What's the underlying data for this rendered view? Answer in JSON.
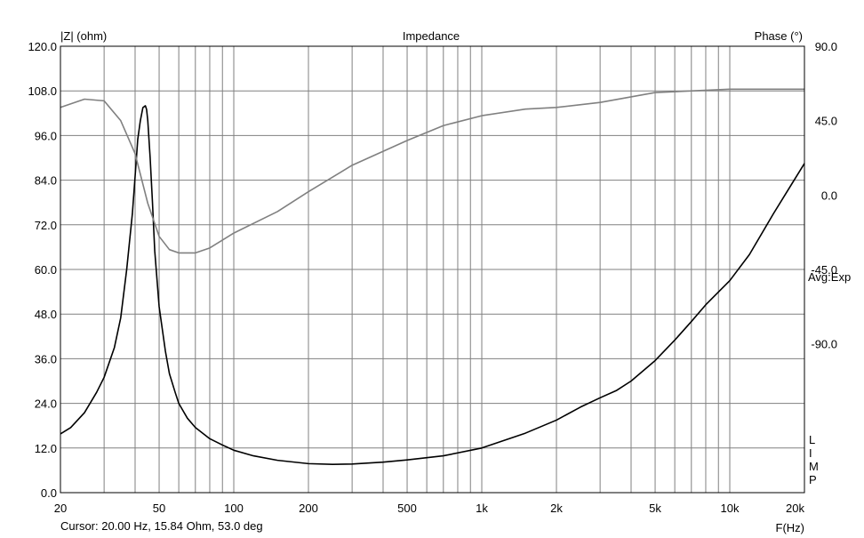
{
  "chart_data": {
    "type": "line",
    "title": "Impedance",
    "ylabel": "|Z| (ohm)",
    "y2label": "Phase (°)",
    "xlabel": "F(Hz)",
    "xscale": "log",
    "xlim": [
      20,
      20000
    ],
    "ylim": [
      0,
      120
    ],
    "y2lim": [
      -180,
      90
    ],
    "grid": true,
    "x_ticks": [
      {
        "value": 20,
        "label": "20"
      },
      {
        "value": 50,
        "label": "50"
      },
      {
        "value": 100,
        "label": "100"
      },
      {
        "value": 200,
        "label": "200"
      },
      {
        "value": 500,
        "label": "500"
      },
      {
        "value": 1000,
        "label": "1k"
      },
      {
        "value": 2000,
        "label": "2k"
      },
      {
        "value": 5000,
        "label": "5k"
      },
      {
        "value": 10000,
        "label": "10k"
      },
      {
        "value": 20000,
        "label": "20k"
      }
    ],
    "y_ticks": [
      "0.0",
      "12.0",
      "24.0",
      "36.0",
      "48.0",
      "60.0",
      "72.0",
      "84.0",
      "96.0",
      "108.0",
      "120.0"
    ],
    "y2_ticks": [
      {
        "value": 90,
        "label": "90.0"
      },
      {
        "value": 45,
        "label": "45.0"
      },
      {
        "value": 0,
        "label": "0.0"
      },
      {
        "value": -45,
        "label": "-45.0"
      },
      {
        "value": -90,
        "label": "-90.0"
      }
    ],
    "annotations": [
      "Avg:Exp",
      "L",
      "I",
      "M",
      "P"
    ],
    "series": [
      {
        "color": "#000000",
        "axis": "left",
        "x": [
          20,
          22,
          25,
          28,
          30,
          33,
          35,
          37,
          39,
          40,
          41,
          42,
          43,
          44,
          44.5,
          45,
          46,
          47,
          48,
          50,
          53,
          55,
          58,
          60,
          65,
          70,
          80,
          90,
          100,
          120,
          150,
          200,
          250,
          300,
          400,
          500,
          700,
          1000,
          1500,
          2000,
          2500,
          3000,
          3500,
          4000,
          5000,
          6000,
          7000,
          8000,
          10000,
          12000,
          15000,
          20000
        ],
        "values": [
          15.8,
          17.5,
          21.5,
          27,
          31,
          39,
          47,
          60,
          75,
          85,
          95,
          100,
          103.5,
          104,
          103,
          100,
          90,
          78,
          65,
          50,
          38,
          32,
          27,
          24,
          20,
          17.5,
          14.5,
          12.8,
          11.4,
          9.9,
          8.7,
          7.8,
          7.6,
          7.7,
          8.2,
          8.8,
          9.9,
          12.0,
          16.0,
          19.5,
          23.0,
          25.5,
          27.5,
          30.0,
          35.5,
          41.0,
          46.0,
          50.5,
          57.0,
          64.0,
          75.0,
          88.5
        ]
      },
      {
        "color": "#808080",
        "axis": "right",
        "x": [
          20,
          25,
          30,
          35,
          40,
          45,
          50,
          55,
          60,
          70,
          80,
          100,
          150,
          200,
          300,
          500,
          700,
          1000,
          1500,
          2000,
          3000,
          5000,
          10000,
          20000
        ],
        "values": [
          53,
          58,
          57,
          45,
          25,
          -5,
          -25,
          -33,
          -35,
          -35,
          -32,
          -23,
          -10,
          2,
          18,
          33,
          42,
          48,
          52,
          53,
          56,
          62,
          64,
          64
        ]
      }
    ]
  },
  "cursor_readout": "Cursor: 20.00 Hz, 15.84 Ohm, 53.0 deg"
}
